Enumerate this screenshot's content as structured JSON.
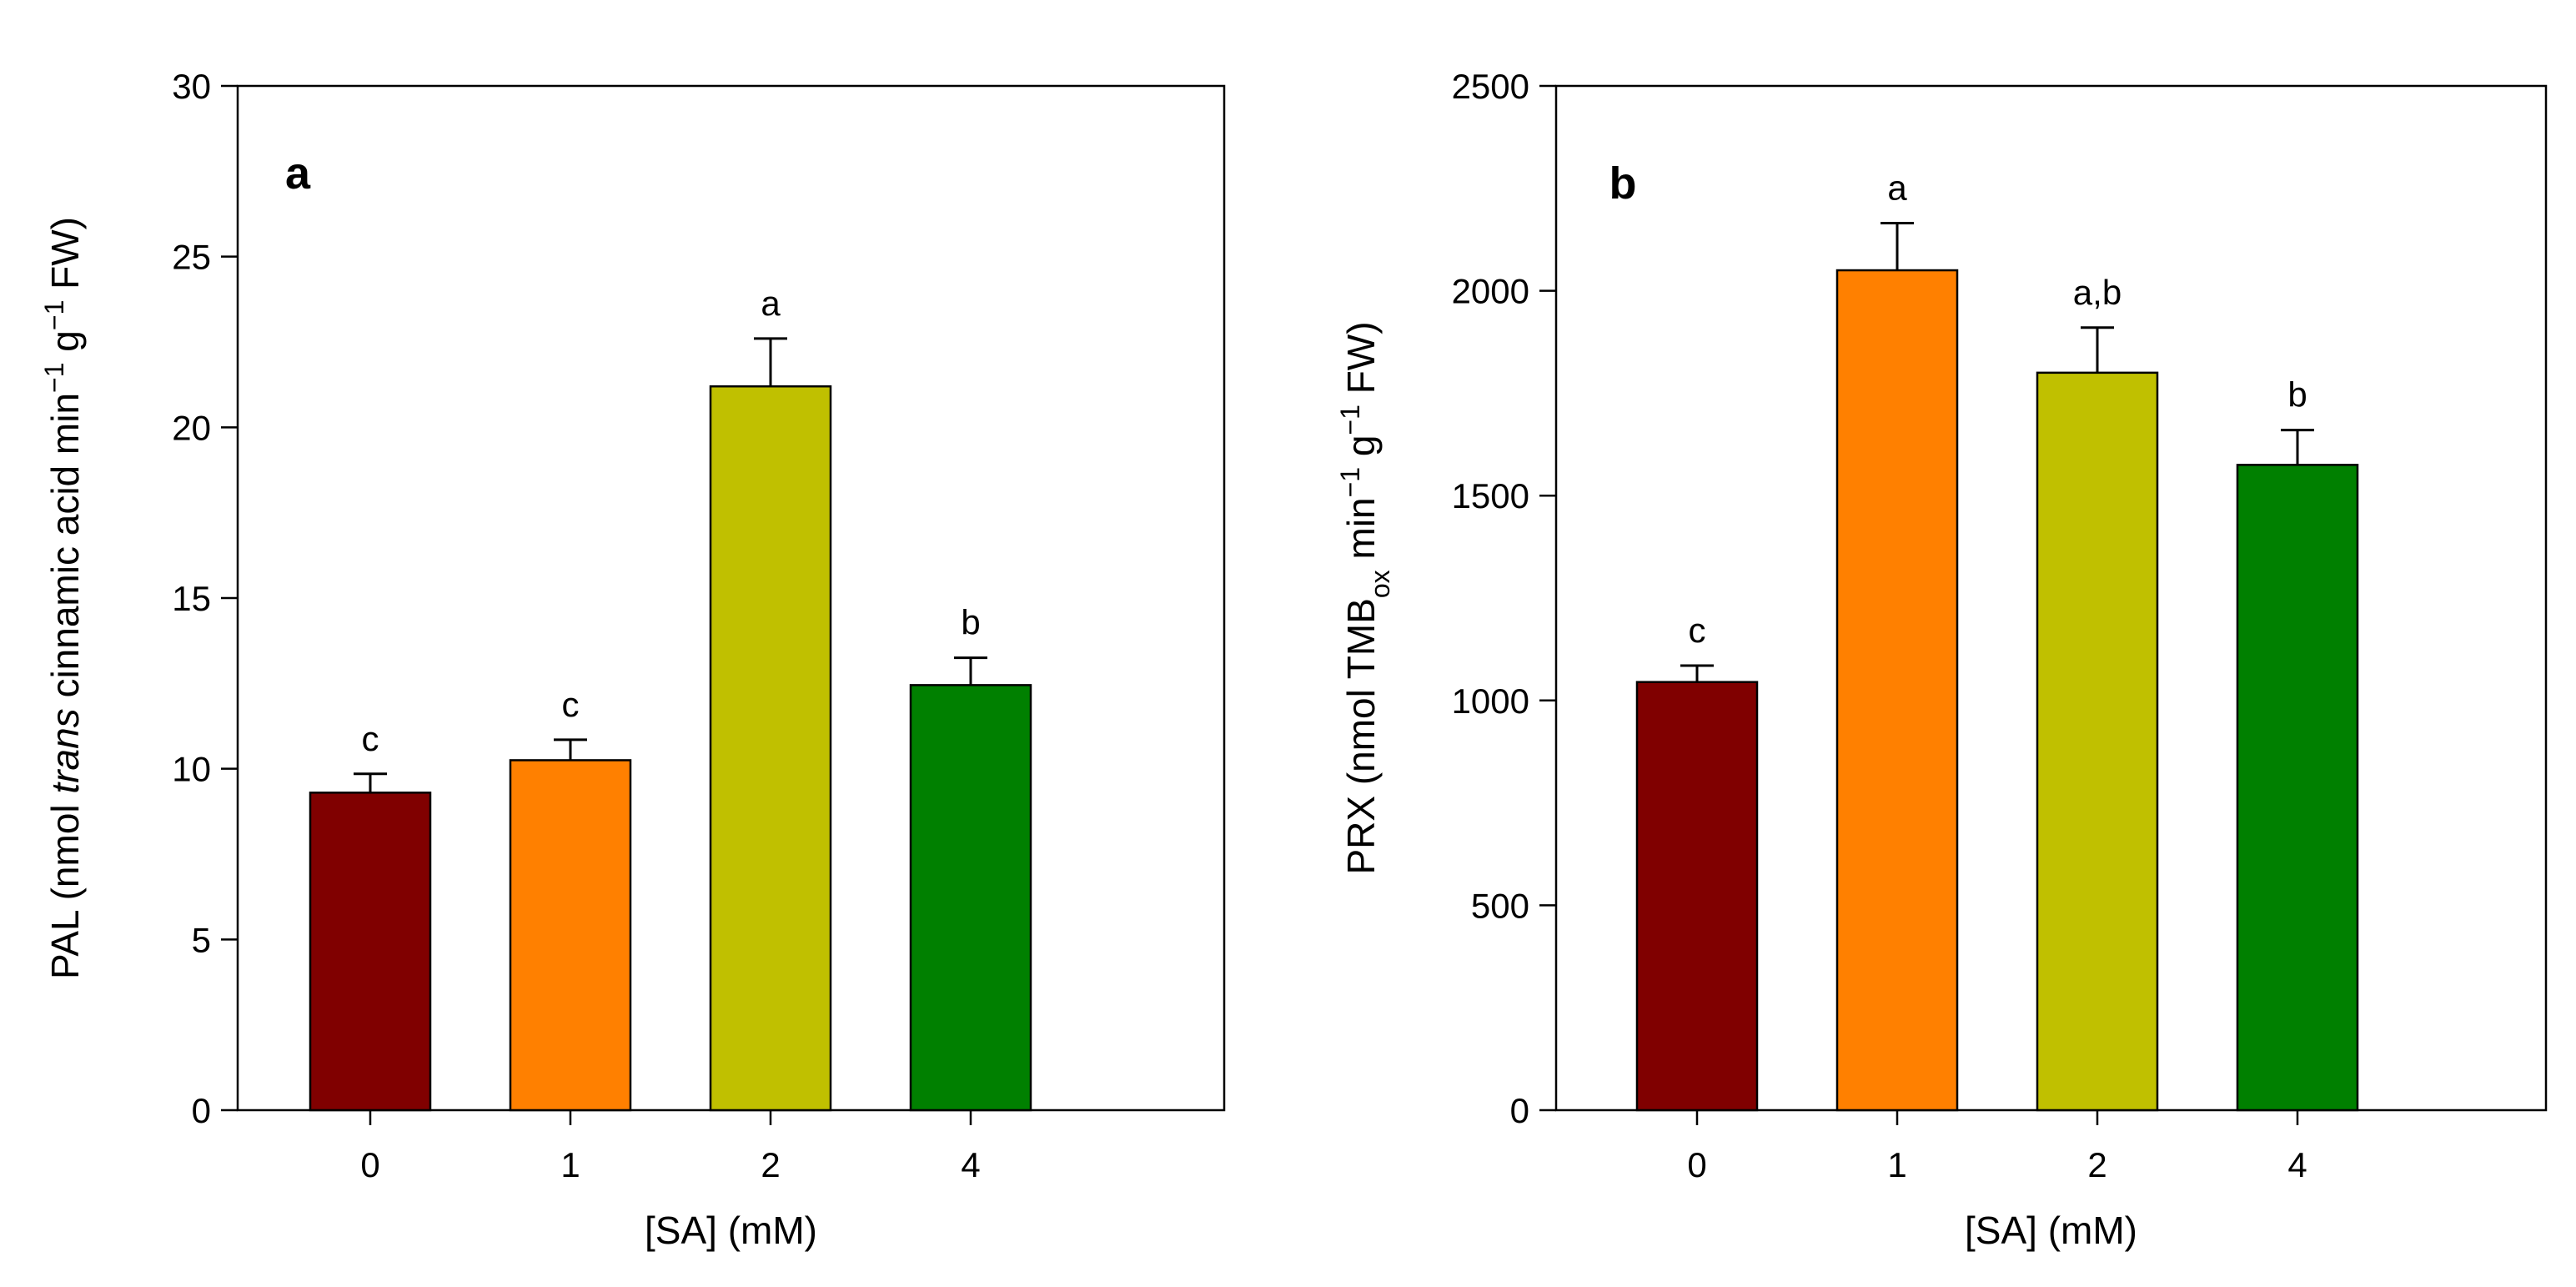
{
  "chart_data": [
    {
      "type": "bar",
      "panel_label": "a",
      "categories": [
        "0",
        "1",
        "2",
        "4"
      ],
      "values": [
        9.3,
        10.25,
        21.2,
        12.45
      ],
      "errors": [
        0.55,
        0.6,
        1.4,
        0.8
      ],
      "significance": [
        "c",
        "c",
        "a",
        "b"
      ],
      "colors": [
        "#800000",
        "#FF8000",
        "#C0C000",
        "#008000"
      ],
      "xlabel": "[SA] (mM)",
      "ylabel_parts": [
        {
          "t": "PAL (nmol "
        },
        {
          "t": "trans",
          "style": "italic"
        },
        {
          "t": " cinnamic acid min"
        },
        {
          "t": "−1",
          "style": "sup"
        },
        {
          "t": " g"
        },
        {
          "t": "−1",
          "style": "sup"
        },
        {
          "t": " FW)"
        }
      ],
      "ylim": [
        0,
        30
      ],
      "yticks": [
        "0",
        "5",
        "10",
        "15",
        "20",
        "25",
        "30"
      ],
      "grid": false
    },
    {
      "type": "bar",
      "panel_label": "b",
      "categories": [
        "0",
        "1",
        "2",
        "4"
      ],
      "values": [
        1045,
        2050,
        1800,
        1575
      ],
      "errors": [
        40,
        115,
        110,
        85
      ],
      "significance": [
        "c",
        "a",
        "a,b",
        "b"
      ],
      "colors": [
        "#800000",
        "#FF8000",
        "#C0C000",
        "#008000"
      ],
      "xlabel": "[SA] (mM)",
      "ylabel_parts": [
        {
          "t": "PRX (nmol TMB"
        },
        {
          "t": "ox",
          "style": "sub"
        },
        {
          "t": " min"
        },
        {
          "t": "−1",
          "style": "sup"
        },
        {
          "t": " g"
        },
        {
          "t": "−1",
          "style": "sup"
        },
        {
          "t": " FW)"
        }
      ],
      "ylim": [
        0,
        2500
      ],
      "yticks": [
        "0",
        "500",
        "1000",
        "1500",
        "2000",
        "2500"
      ],
      "grid": false
    }
  ]
}
